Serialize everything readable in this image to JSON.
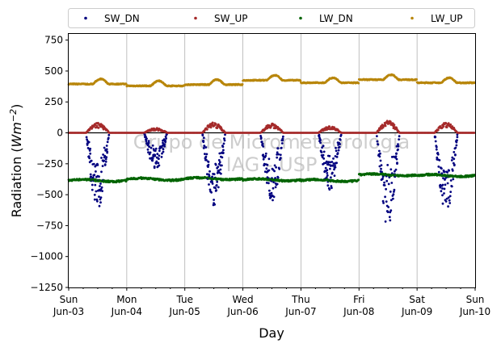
{
  "chart_data": {
    "type": "scatter",
    "xlabel": "Day",
    "ylabel_main": "Radiation (",
    "ylabel_unit": "Wm",
    "ylabel_exp": "−2",
    "ylabel_close": ")",
    "watermark_line1": "Grupo de Micrometeorologia",
    "watermark_line2": "IAG - USP",
    "ylim": [
      -1250,
      800
    ],
    "yticks": [
      -1250,
      -1000,
      -750,
      -500,
      -250,
      0,
      250,
      500,
      750
    ],
    "ytick_labels": [
      "−1250",
      "−1000",
      "−750",
      "−500",
      "−250",
      "0",
      "250",
      "500",
      "750"
    ],
    "xlim": [
      "2018-06-03",
      "2018-06-10"
    ],
    "xticks": [
      {
        "day": "Sun",
        "date": "Jun-03"
      },
      {
        "day": "Mon",
        "date": "Jun-04"
      },
      {
        "day": "Tue",
        "date": "Jun-05"
      },
      {
        "day": "Wed",
        "date": "Jun-06"
      },
      {
        "day": "Thu",
        "date": "Jun-07"
      },
      {
        "day": "Fri",
        "date": "Jun-08"
      },
      {
        "day": "Sat",
        "date": "Jun-09"
      },
      {
        "day": "Sun",
        "date": "Jun-10"
      }
    ],
    "grid": "vertical",
    "legend_position": "top",
    "series": [
      {
        "name": "SW_DN",
        "color": "#00007f",
        "night_value": 0,
        "daily_min": [
          -620,
          -300,
          -590,
          -560,
          -460,
          -760,
          -660
        ]
      },
      {
        "name": "SW_UP",
        "color": "#a52a2a",
        "night_value": 0,
        "daily_max": [
          80,
          40,
          85,
          75,
          55,
          100,
          85
        ]
      },
      {
        "name": "LW_DN",
        "color": "#006400",
        "daily_level": [
          -385,
          -375,
          -370,
          -380,
          -385,
          -340,
          -345
        ]
      },
      {
        "name": "LW_UP",
        "color": "#b8860b",
        "daily_level": [
          410,
          395,
          405,
          440,
          420,
          445,
          420
        ]
      }
    ]
  }
}
